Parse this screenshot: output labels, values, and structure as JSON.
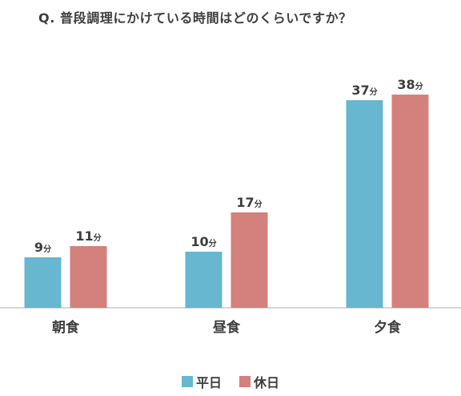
{
  "title": "Q. 普段調理にかけている時間はどのくらいですか？",
  "colors": {
    "weekday": "#66b7cf",
    "holiday": "#d4807c",
    "axis": "#c9c9c9",
    "text": "#3d3d3d"
  },
  "unit": "分",
  "chart_data": {
    "type": "bar",
    "categories": [
      "朝食",
      "昼食",
      "夕食"
    ],
    "series": [
      {
        "name": "平日",
        "values": [
          9,
          10,
          37
        ]
      },
      {
        "name": "休日",
        "values": [
          11,
          17,
          38
        ]
      }
    ],
    "value_labels": [
      [
        "9",
        "10",
        "37"
      ],
      [
        "11",
        "17",
        "38"
      ]
    ],
    "ylim": [
      0,
      42
    ],
    "grid": false,
    "legend_position": "bottom-center"
  },
  "legend": {
    "weekday_label": "平日",
    "holiday_label": "休日"
  }
}
